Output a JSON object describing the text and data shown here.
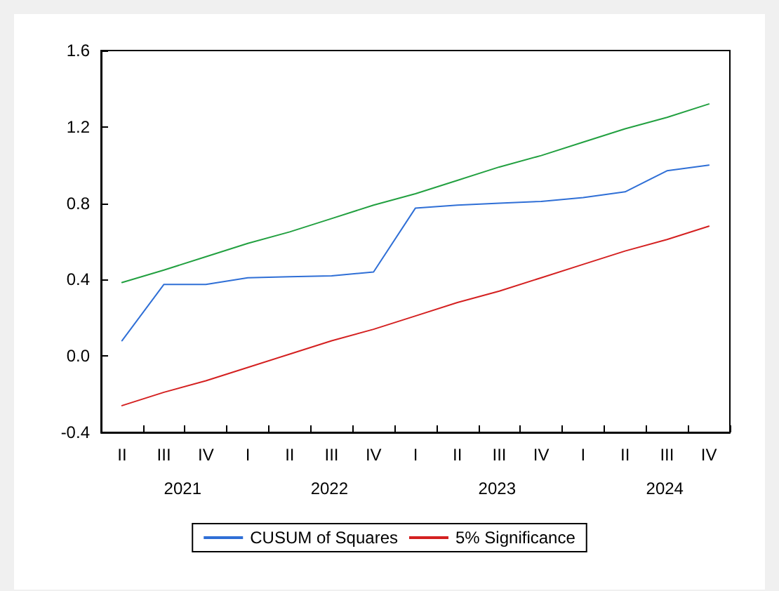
{
  "chart_data": {
    "type": "line",
    "categories": [
      "II",
      "III",
      "IV",
      "I",
      "II",
      "III",
      "IV",
      "I",
      "II",
      "III",
      "IV",
      "I",
      "II",
      "III",
      "IV"
    ],
    "series": [
      {
        "name": "CUSUM of Squares",
        "color": "#2f6fd6",
        "values": [
          0.08,
          0.375,
          0.375,
          0.41,
          0.415,
          0.42,
          0.44,
          0.775,
          0.79,
          0.8,
          0.81,
          0.83,
          0.86,
          0.97,
          1.0
        ]
      },
      {
        "name": "5% Significance",
        "color": "#d42020",
        "values": [
          -0.26,
          -0.19,
          -0.13,
          -0.06,
          0.01,
          0.08,
          0.14,
          0.21,
          0.28,
          0.34,
          0.41,
          0.48,
          0.55,
          0.61,
          0.68
        ]
      },
      {
        "color": "#22a040",
        "values": [
          0.385,
          0.45,
          0.52,
          0.59,
          0.65,
          0.72,
          0.79,
          0.85,
          0.92,
          0.99,
          1.05,
          1.12,
          1.19,
          1.25,
          1.32
        ]
      }
    ],
    "ylim": [
      -0.4,
      1.6
    ],
    "yticks": [
      -0.4,
      {
        "value": 0,
        "label": "0.0"
      },
      0.4,
      0.8,
      1.2,
      1.6
    ],
    "annotations": [
      "2021",
      "2022",
      "2023",
      "2024"
    ],
    "legend": "bottom",
    "grid": false,
    "marker": "none",
    "line_style": "solid"
  }
}
